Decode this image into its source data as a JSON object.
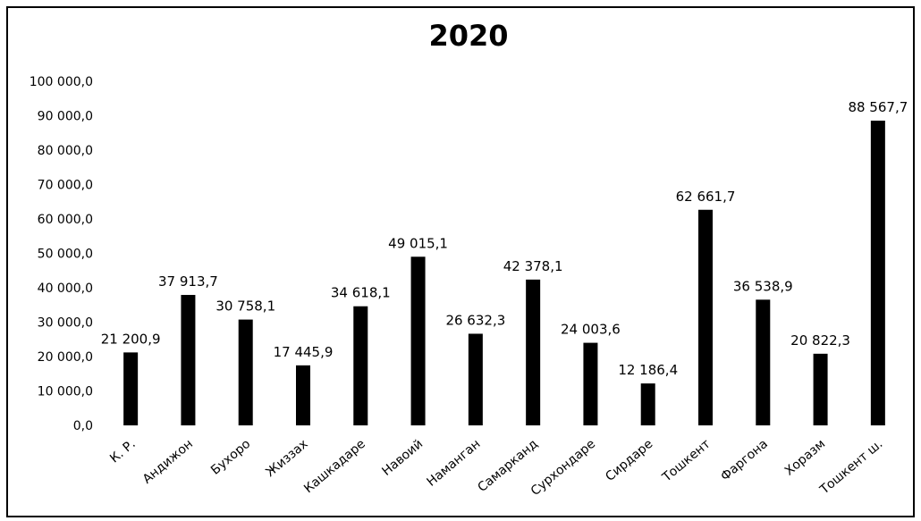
{
  "chart_data": {
    "type": "bar",
    "title": "2020",
    "xlabel": "",
    "ylabel": "",
    "ylim": [
      0,
      100000
    ],
    "yticks": [
      0,
      10000,
      20000,
      30000,
      40000,
      50000,
      60000,
      70000,
      80000,
      90000,
      100000
    ],
    "ytick_labels": [
      "0,0",
      "10 000,0",
      "20 000,0",
      "30 000,0",
      "40 000,0",
      "50 000,0",
      "60 000,0",
      "70 000,0",
      "80 000,0",
      "90 000,0",
      "100 000,0"
    ],
    "grid": false,
    "legend": "none",
    "bar_color": "#000000",
    "categories": [
      "К. Р.",
      "Андижон",
      "Бухоро",
      "Жиззах",
      "Кашкадаре",
      "Навоий",
      "Наманган",
      "Самарканд",
      "Сурхондаре",
      "Сирдаре",
      "Тошкент",
      "Фаргона",
      "Хоразм",
      "Тошкент ш."
    ],
    "values": [
      21200.9,
      37913.7,
      30758.1,
      17445.9,
      34618.1,
      49015.1,
      26632.3,
      42378.1,
      24003.6,
      12186.4,
      62661.7,
      36538.9,
      20822.3,
      88567.7
    ],
    "data_labels": [
      "21 200,9",
      "37 913,7",
      "30 758,1",
      "17 445,9",
      "34 618,1",
      "49 015,1",
      "26 632,3",
      "42 378,1",
      "24 003,6",
      "12 186,4",
      "62 661,7",
      "36 538,9",
      "20 822,3",
      "88 567,7"
    ]
  }
}
